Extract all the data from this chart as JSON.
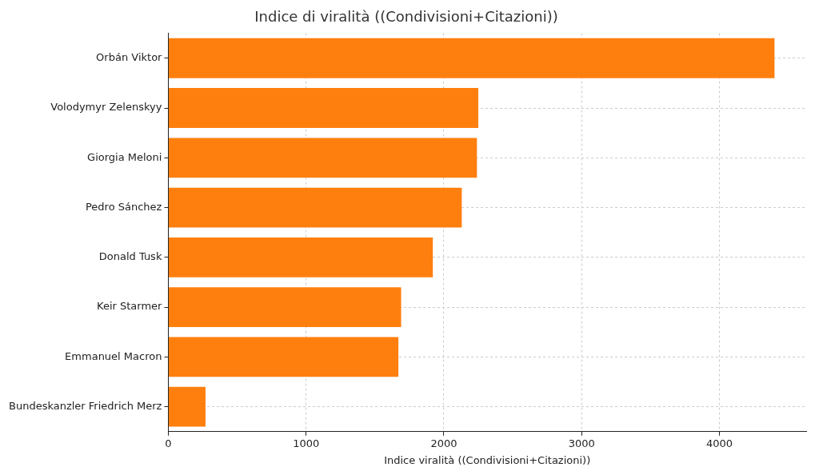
{
  "chart_data": {
    "type": "bar",
    "orientation": "horizontal",
    "title": "Indice di viralità ((Condivisioni+Citazioni))",
    "xlabel": "Indice viralità ((Condivisioni+Citazioni))",
    "categories": [
      "Orbán Viktor",
      "Volodymyr Zelenskyy",
      "Giorgia Meloni",
      "Pedro Sánchez",
      "Donald Tusk",
      "Keir Starmer",
      "Emmanuel Macron",
      "Bundeskanzler Friedrich Merz"
    ],
    "values": [
      4400,
      2250,
      2240,
      2130,
      1920,
      1690,
      1670,
      270
    ],
    "color": "#ff7f0e",
    "xlim": [
      0,
      4630
    ],
    "xticks": [
      0,
      1000,
      2000,
      3000,
      4000
    ],
    "grid": true
  }
}
